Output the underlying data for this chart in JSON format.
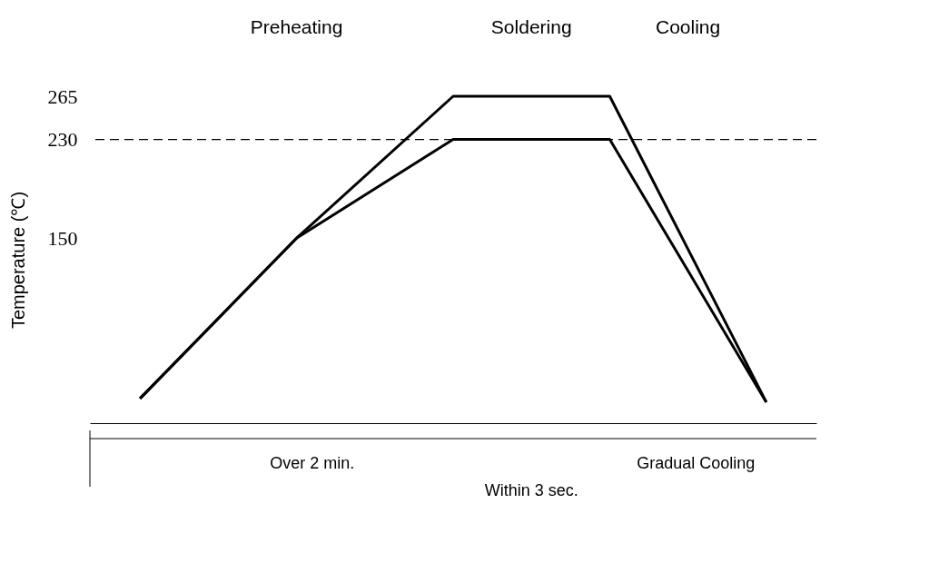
{
  "chart_data": {
    "type": "line",
    "ylabel": "Temperature (℃)",
    "categories": [
      null,
      null,
      null,
      null,
      null
    ],
    "series": [
      {
        "color": "#000000",
        "values": [
          20,
          150,
          265,
          265,
          17
        ]
      },
      {
        "color": "#000000",
        "values": [
          20,
          150,
          230,
          230,
          17
        ]
      }
    ],
    "ylim": [
      0,
      265
    ],
    "yticks": [
      150,
      230,
      265
    ],
    "tick_labels": "y",
    "grid": false,
    "marker": "none",
    "line_style": "solid",
    "ref_lines": [
      {
        "axis": "y",
        "value": 230,
        "color": "#000000",
        "line_style": "dashed"
      }
    ],
    "annotations": [
      "Preheating",
      "Soldering",
      "Cooling",
      "Over 2 min.",
      "Within 3 sec.",
      "Gradual Cooling"
    ]
  }
}
